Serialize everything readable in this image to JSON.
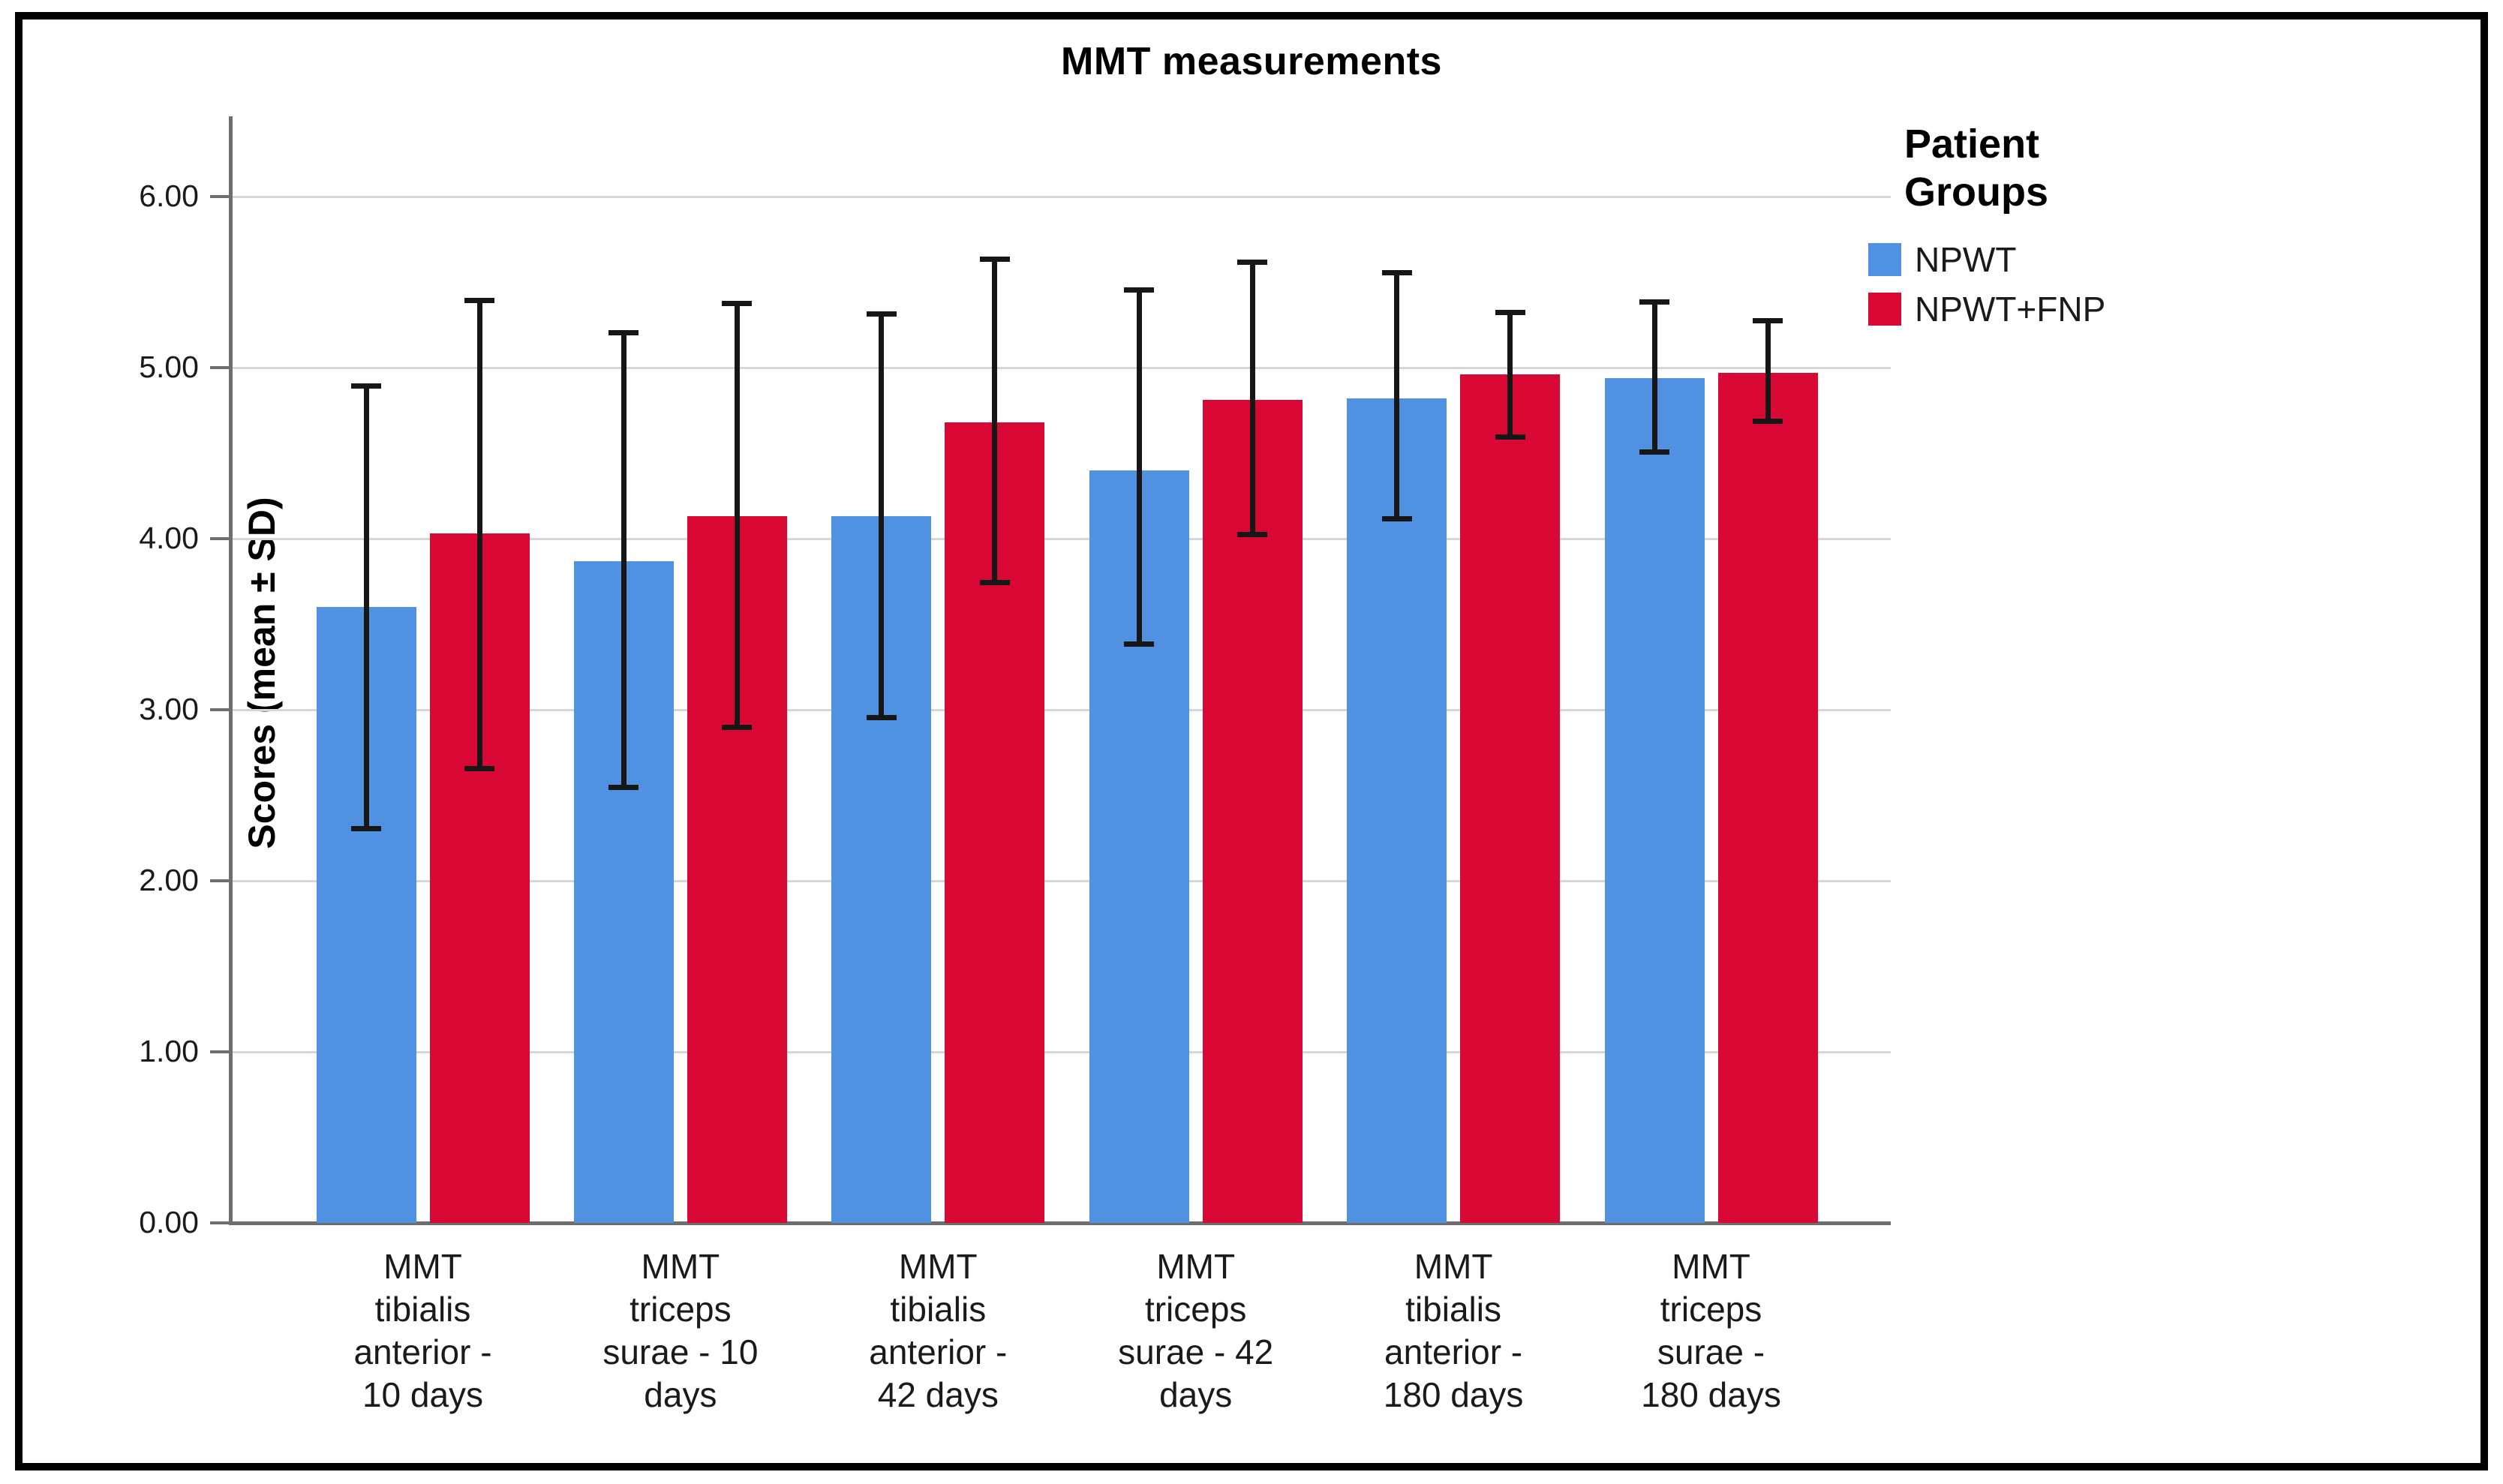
{
  "chart_data": {
    "type": "bar",
    "title": "MMT measurements",
    "ylabel": "Scores (mean ± SD)",
    "legend_title": "Patient\nGroups",
    "legend_position": "right",
    "grid": "horizontal",
    "ylim": [
      0,
      6.47
    ],
    "ytick_values": [
      0,
      1,
      2,
      3,
      4,
      5,
      6
    ],
    "ytick_labels": [
      "0.00",
      "1.00",
      "2.00",
      "3.00",
      "4.00",
      "5.00",
      "6.00"
    ],
    "categories": [
      "MMT\ntibialis\nanterior -\n10 days",
      "MMT\ntriceps\nsurae - 10\ndays",
      "MMT\ntibialis\nanterior -\n42 days",
      "MMT\ntriceps\nsurae - 42\ndays",
      "MMT\ntibialis\nanterior -\n180 days",
      "MMT\ntriceps\nsurae -\n180 days"
    ],
    "series": [
      {
        "name": "NPWT",
        "color": "#5191E1",
        "means": [
          3.6,
          3.87,
          4.13,
          4.4,
          4.82,
          4.94
        ],
        "error_upper": [
          4.91,
          5.22,
          5.33,
          5.47,
          5.57,
          5.4
        ],
        "error_lower": [
          2.29,
          2.53,
          2.94,
          3.37,
          4.1,
          4.49
        ]
      },
      {
        "name": "NPWT+FNP",
        "color": "#D90733",
        "means": [
          4.03,
          4.13,
          4.68,
          4.81,
          4.96,
          4.97
        ],
        "error_upper": [
          5.41,
          5.39,
          5.65,
          5.63,
          5.34,
          5.29
        ],
        "error_lower": [
          2.64,
          2.88,
          3.73,
          4.01,
          4.58,
          4.67
        ]
      }
    ],
    "colors": {
      "gridline": "#d6d6d6",
      "axis": "#6e6e6e",
      "error_bar": "#161616",
      "frame_border": "#000000",
      "background": "#ffffff"
    }
  }
}
